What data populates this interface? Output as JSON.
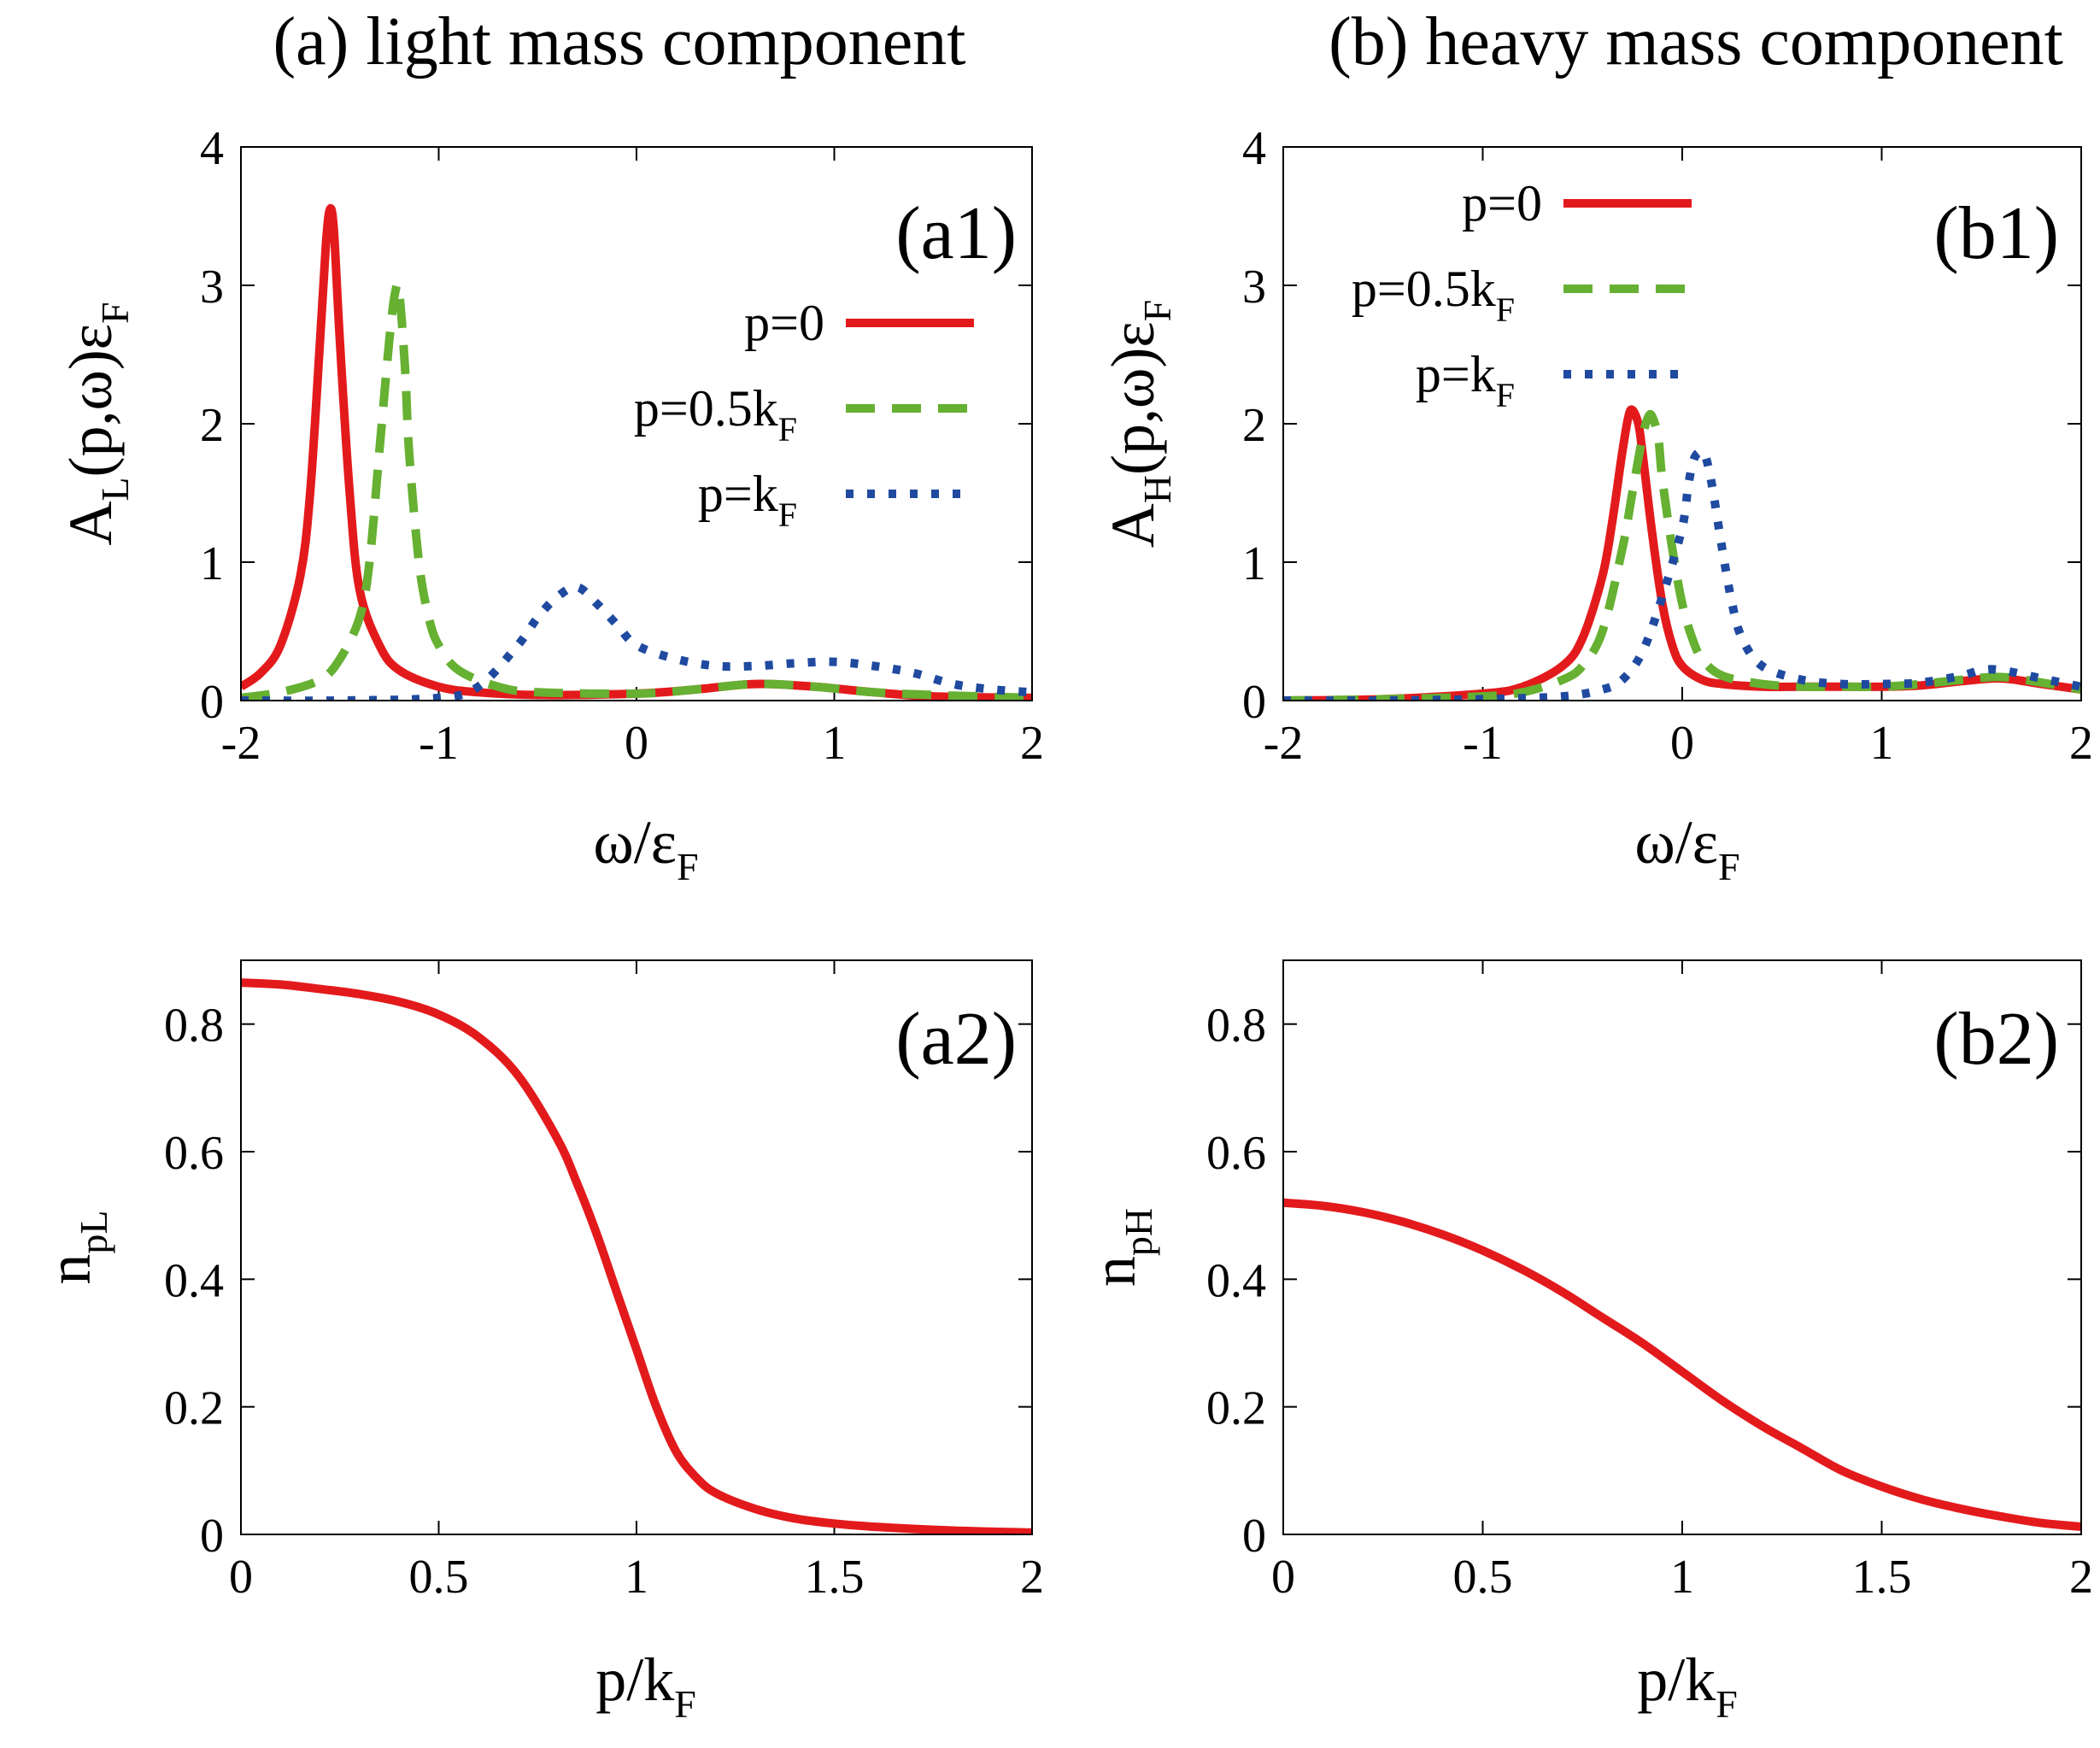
{
  "titles": {
    "left": "(a) light mass component",
    "right": "(b) heavy mass component"
  },
  "colors": {
    "p0": "#e31a1c",
    "p05": "#66b032",
    "pkF": "#1f4aa0"
  },
  "chart_data": [
    {
      "id": "a1",
      "type": "line",
      "panel_label": "(a1)",
      "ylabel_main": "A",
      "ylabel_sub": "L",
      "ylabel_rest": "(p,ω)ε",
      "ylabel_sub2": "F",
      "xlabel_main": "ω/ε",
      "xlabel_sub": "F",
      "xlim": [
        -2,
        2
      ],
      "ylim": [
        0,
        4
      ],
      "xticks": [
        "-2",
        "-1",
        "0",
        "1",
        "2"
      ],
      "yticks": [
        "0",
        "1",
        "2",
        "3",
        "4"
      ],
      "legend_position": "right",
      "series": [
        {
          "key": "p0",
          "name_main": "p=0",
          "name_sub": "",
          "style": "solid",
          "x": [
            -2.0,
            -1.9,
            -1.8,
            -1.7,
            -1.65,
            -1.6,
            -1.57,
            -1.55,
            -1.53,
            -1.5,
            -1.45,
            -1.4,
            -1.3,
            -1.2,
            -1.0,
            -0.8,
            -0.5,
            0.0,
            0.3,
            0.6,
            0.9,
            1.2,
            1.5,
            2.0
          ],
          "values": [
            0.1,
            0.2,
            0.4,
            0.9,
            1.5,
            2.6,
            3.3,
            3.55,
            3.4,
            2.6,
            1.5,
            0.8,
            0.4,
            0.22,
            0.1,
            0.06,
            0.04,
            0.05,
            0.08,
            0.12,
            0.1,
            0.06,
            0.03,
            0.02
          ]
        },
        {
          "key": "p05",
          "name_main": "p=0.5k",
          "name_sub": "F",
          "style": "dashed",
          "x": [
            -2.0,
            -1.8,
            -1.6,
            -1.5,
            -1.4,
            -1.35,
            -1.3,
            -1.25,
            -1.22,
            -1.2,
            -1.17,
            -1.15,
            -1.1,
            -1.05,
            -1.0,
            -0.9,
            -0.7,
            -0.5,
            0.0,
            0.3,
            0.6,
            0.9,
            1.2,
            1.5,
            2.0
          ],
          "values": [
            0.02,
            0.06,
            0.15,
            0.3,
            0.6,
            1.0,
            1.8,
            2.6,
            2.95,
            2.95,
            2.4,
            1.8,
            1.0,
            0.6,
            0.4,
            0.22,
            0.1,
            0.06,
            0.05,
            0.08,
            0.12,
            0.1,
            0.06,
            0.04,
            0.02
          ]
        },
        {
          "key": "pkF",
          "name_main": "p=k",
          "name_sub": "F",
          "style": "dotted",
          "x": [
            -2.0,
            -1.5,
            -1.0,
            -0.8,
            -0.6,
            -0.5,
            -0.4,
            -0.3,
            -0.2,
            -0.1,
            0.0,
            0.2,
            0.4,
            0.6,
            0.8,
            1.0,
            1.2,
            1.4,
            1.6,
            1.8,
            2.0
          ],
          "values": [
            0.0,
            0.0,
            0.02,
            0.1,
            0.4,
            0.6,
            0.75,
            0.82,
            0.7,
            0.55,
            0.4,
            0.3,
            0.25,
            0.25,
            0.27,
            0.28,
            0.25,
            0.2,
            0.12,
            0.08,
            0.06
          ]
        }
      ]
    },
    {
      "id": "b1",
      "type": "line",
      "panel_label": "(b1)",
      "ylabel_main": "A",
      "ylabel_sub": "H",
      "ylabel_rest": "(p,ω)ε",
      "ylabel_sub2": "F",
      "xlabel_main": "ω/ε",
      "xlabel_sub": "F",
      "xlim": [
        -2,
        2
      ],
      "ylim": [
        0,
        4
      ],
      "xticks": [
        "-2",
        "-1",
        "0",
        "1",
        "2"
      ],
      "yticks": [
        "0",
        "1",
        "2",
        "3",
        "4"
      ],
      "legend_position": "top-left",
      "series": [
        {
          "key": "p0",
          "name_main": "p=0",
          "name_sub": "",
          "style": "solid",
          "x": [
            -2.0,
            -1.5,
            -1.0,
            -0.8,
            -0.6,
            -0.5,
            -0.4,
            -0.35,
            -0.3,
            -0.27,
            -0.25,
            -0.22,
            -0.2,
            -0.15,
            -0.1,
            -0.05,
            0.0,
            0.1,
            0.2,
            0.4,
            0.6,
            0.8,
            1.0,
            1.2,
            1.4,
            1.6,
            1.8,
            2.0
          ],
          "values": [
            0.0,
            0.01,
            0.05,
            0.1,
            0.25,
            0.45,
            0.9,
            1.3,
            1.8,
            2.05,
            2.1,
            2.0,
            1.8,
            1.2,
            0.7,
            0.4,
            0.25,
            0.15,
            0.12,
            0.1,
            0.1,
            0.1,
            0.1,
            0.11,
            0.14,
            0.16,
            0.12,
            0.08
          ]
        },
        {
          "key": "p05",
          "name_main": "p=0.5k",
          "name_sub": "F",
          "style": "dashed",
          "x": [
            -2.0,
            -1.5,
            -1.0,
            -0.8,
            -0.6,
            -0.5,
            -0.4,
            -0.3,
            -0.25,
            -0.2,
            -0.17,
            -0.15,
            -0.12,
            -0.1,
            -0.05,
            0.0,
            0.05,
            0.1,
            0.2,
            0.4,
            0.6,
            0.8,
            1.0,
            1.2,
            1.4,
            1.6,
            1.8,
            2.0
          ],
          "values": [
            0.0,
            0.01,
            0.03,
            0.06,
            0.15,
            0.25,
            0.5,
            1.1,
            1.5,
            1.9,
            2.05,
            2.05,
            1.9,
            1.6,
            1.1,
            0.7,
            0.45,
            0.3,
            0.18,
            0.12,
            0.1,
            0.1,
            0.1,
            0.12,
            0.15,
            0.17,
            0.13,
            0.08
          ]
        },
        {
          "key": "pkF",
          "name_main": "p=k",
          "name_sub": "F",
          "style": "dotted",
          "x": [
            -2.0,
            -1.5,
            -1.0,
            -0.6,
            -0.4,
            -0.3,
            -0.2,
            -0.1,
            0.0,
            0.03,
            0.06,
            0.1,
            0.12,
            0.15,
            0.2,
            0.25,
            0.3,
            0.4,
            0.6,
            0.8,
            1.0,
            1.2,
            1.4,
            1.5,
            1.6,
            1.8,
            2.0
          ],
          "values": [
            0.0,
            0.0,
            0.01,
            0.03,
            0.08,
            0.15,
            0.35,
            0.75,
            1.25,
            1.55,
            1.75,
            1.8,
            1.75,
            1.55,
            1.1,
            0.7,
            0.45,
            0.25,
            0.15,
            0.12,
            0.12,
            0.13,
            0.18,
            0.22,
            0.22,
            0.16,
            0.1
          ]
        }
      ]
    },
    {
      "id": "a2",
      "type": "line",
      "panel_label": "(a2)",
      "ylabel_main": "n",
      "ylabel_sub": "pL",
      "ylabel_rest": "",
      "ylabel_sub2": "",
      "xlabel_main": "p/k",
      "xlabel_sub": "F",
      "xlim": [
        0,
        2
      ],
      "ylim": [
        0,
        0.9
      ],
      "xticks": [
        "0",
        "0.5",
        "1",
        "1.5",
        "2"
      ],
      "yticks": [
        "0",
        "0.2",
        "0.4",
        "0.6",
        "0.8"
      ],
      "ytick_values": [
        0,
        0.2,
        0.4,
        0.6,
        0.8
      ],
      "series": [
        {
          "key": "p0",
          "name_main": "",
          "name_sub": "",
          "style": "solid",
          "x": [
            0.0,
            0.1,
            0.2,
            0.3,
            0.4,
            0.5,
            0.6,
            0.7,
            0.8,
            0.85,
            0.9,
            0.95,
            1.0,
            1.05,
            1.1,
            1.15,
            1.2,
            1.3,
            1.4,
            1.5,
            1.6,
            1.8,
            2.0
          ],
          "values": [
            0.865,
            0.862,
            0.855,
            0.847,
            0.835,
            0.815,
            0.78,
            0.72,
            0.62,
            0.55,
            0.47,
            0.38,
            0.29,
            0.2,
            0.13,
            0.09,
            0.065,
            0.04,
            0.025,
            0.017,
            0.012,
            0.006,
            0.003
          ]
        }
      ]
    },
    {
      "id": "b2",
      "type": "line",
      "panel_label": "(b2)",
      "ylabel_main": "n",
      "ylabel_sub": "pH",
      "ylabel_rest": "",
      "ylabel_sub2": "",
      "xlabel_main": "p/k",
      "xlabel_sub": "F",
      "xlim": [
        0,
        2
      ],
      "ylim": [
        0,
        0.9
      ],
      "xticks": [
        "0",
        "0.5",
        "1",
        "1.5",
        "2"
      ],
      "yticks": [
        "0",
        "0.2",
        "0.4",
        "0.6",
        "0.8"
      ],
      "ytick_values": [
        0,
        0.2,
        0.4,
        0.6,
        0.8
      ],
      "series": [
        {
          "key": "p0",
          "name_main": "",
          "name_sub": "",
          "style": "solid",
          "x": [
            0.0,
            0.1,
            0.2,
            0.3,
            0.4,
            0.5,
            0.6,
            0.7,
            0.8,
            0.9,
            1.0,
            1.1,
            1.2,
            1.3,
            1.4,
            1.5,
            1.6,
            1.7,
            1.8,
            1.9,
            2.0
          ],
          "values": [
            0.52,
            0.515,
            0.505,
            0.49,
            0.47,
            0.445,
            0.415,
            0.38,
            0.34,
            0.3,
            0.255,
            0.21,
            0.17,
            0.135,
            0.1,
            0.075,
            0.055,
            0.04,
            0.028,
            0.018,
            0.012
          ]
        }
      ]
    }
  ]
}
